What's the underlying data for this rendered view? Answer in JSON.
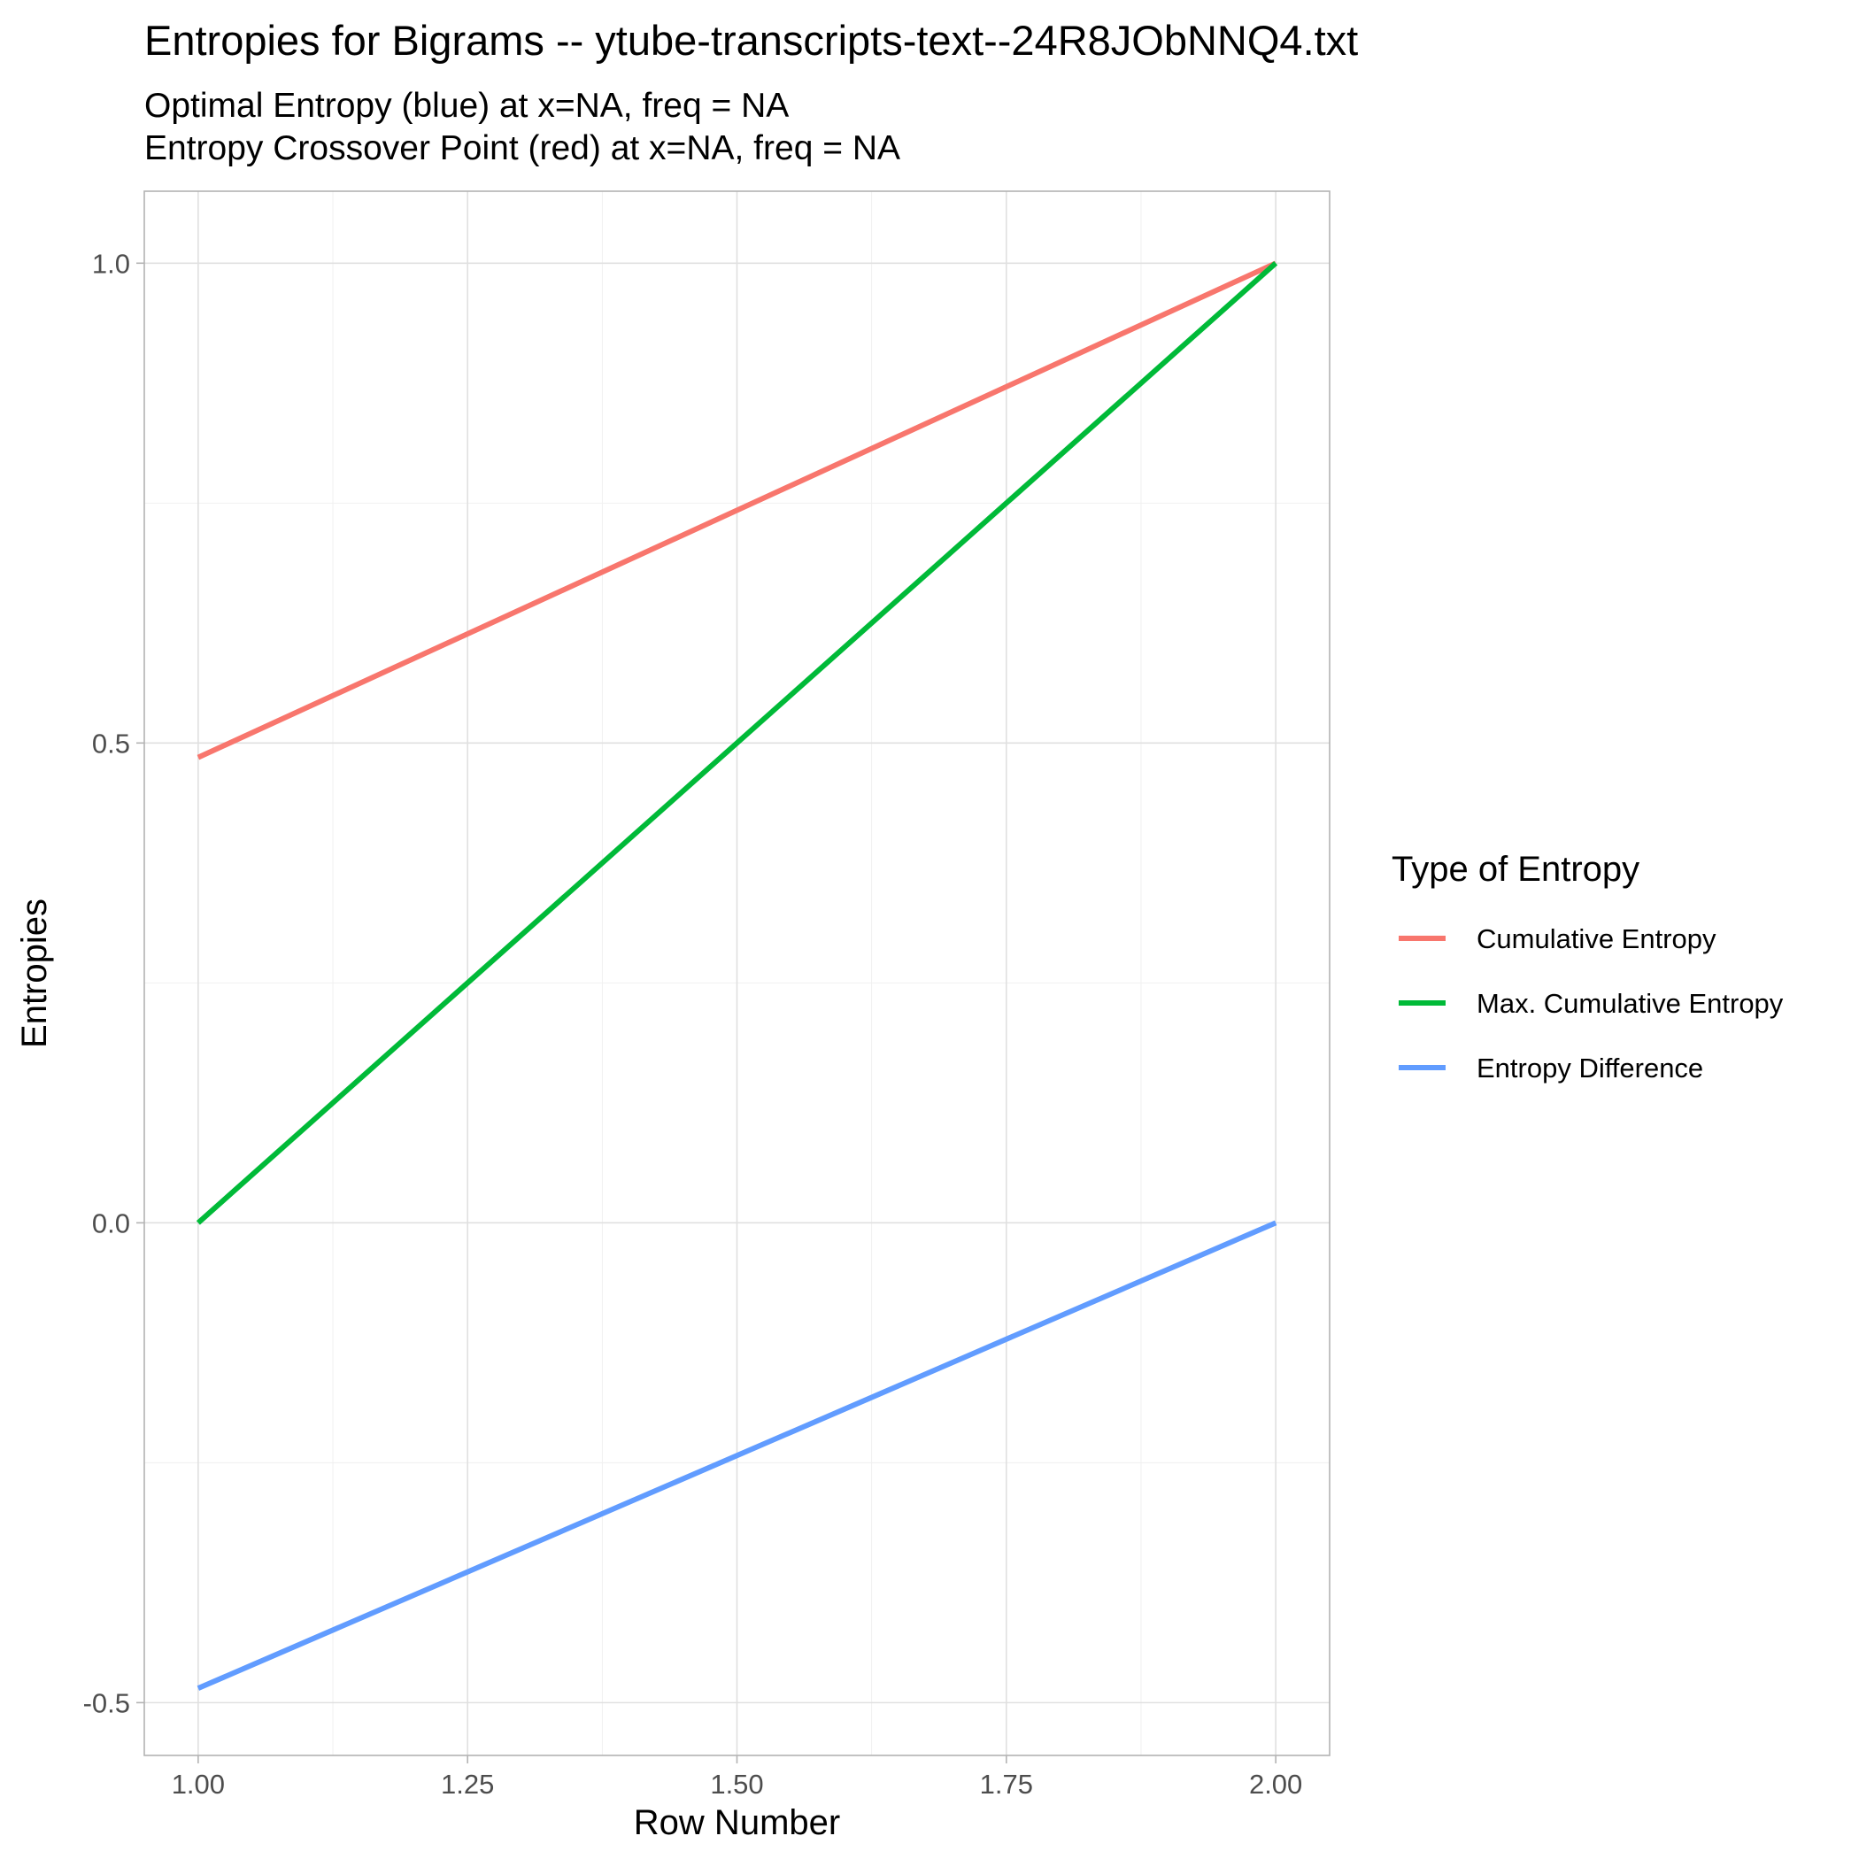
{
  "chart_data": {
    "type": "line",
    "title": "Entropies for Bigrams -- ytube-transcripts-text--24R8JObNNQ4.txt",
    "subtitle_lines": [
      "Optimal Entropy (blue) at x=NA, freq = NA",
      "Entropy Crossover Point (red) at x=NA, freq = NA"
    ],
    "xlabel": "Row Number",
    "ylabel": "Entropies",
    "xlim": [
      0.95,
      2.05
    ],
    "ylim": [
      -0.555,
      1.075
    ],
    "x_ticks": [
      1.0,
      1.25,
      1.5,
      1.75,
      2.0
    ],
    "x_tick_labels": [
      "1.00",
      "1.25",
      "1.50",
      "1.75",
      "2.00"
    ],
    "y_ticks": [
      -0.5,
      0.0,
      0.5,
      1.0
    ],
    "y_tick_labels": [
      "-0.5",
      "0.0",
      "0.5",
      "1.0"
    ],
    "grid": true,
    "legend": {
      "title": "Type of Entropy",
      "position": "right"
    },
    "x": [
      1,
      2
    ],
    "series": [
      {
        "name": "Cumulative Entropy",
        "color": "#F8766D",
        "values": [
          0.485,
          1.0
        ]
      },
      {
        "name": "Max. Cumulative Entropy",
        "color": "#00BA38",
        "values": [
          0.0,
          1.0
        ]
      },
      {
        "name": "Entropy Difference",
        "color": "#619CFF",
        "values": [
          -0.485,
          0.0
        ]
      }
    ]
  }
}
